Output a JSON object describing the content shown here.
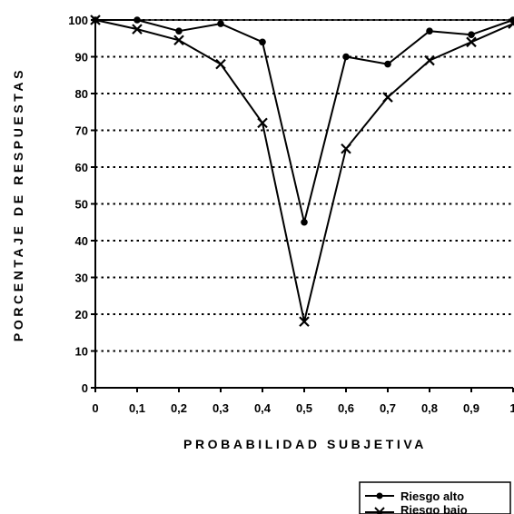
{
  "chart_data": {
    "type": "line",
    "xlabel": "PROBABILIDAD SUBJETIVA",
    "ylabel": "PORCENTAJE DE RESPUESTAS",
    "x": [
      0,
      0.1,
      0.2,
      0.3,
      0.4,
      0.5,
      0.6,
      0.7,
      0.8,
      0.9,
      1
    ],
    "x_tick_labels": [
      "0",
      "0,1",
      "0,2",
      "0,3",
      "0,4",
      "0,5",
      "0,6",
      "0,7",
      "0,8",
      "0,9",
      "1"
    ],
    "y_ticks": [
      0,
      10,
      20,
      30,
      40,
      50,
      60,
      70,
      80,
      90,
      100
    ],
    "ylim": [
      0,
      100
    ],
    "xlim": [
      0,
      1
    ],
    "grid": "horizontal dotted",
    "legend_position": "bottom-right",
    "series": [
      {
        "name": "Riesgo alto",
        "marker": "dot",
        "values": [
          100,
          100,
          97,
          99,
          94,
          45,
          90,
          88,
          97,
          96,
          100
        ]
      },
      {
        "name": "Riesgo bajo",
        "marker": "x",
        "values": [
          100,
          97.5,
          94.5,
          88,
          72,
          18,
          65,
          79,
          89,
          94,
          99
        ]
      }
    ]
  }
}
